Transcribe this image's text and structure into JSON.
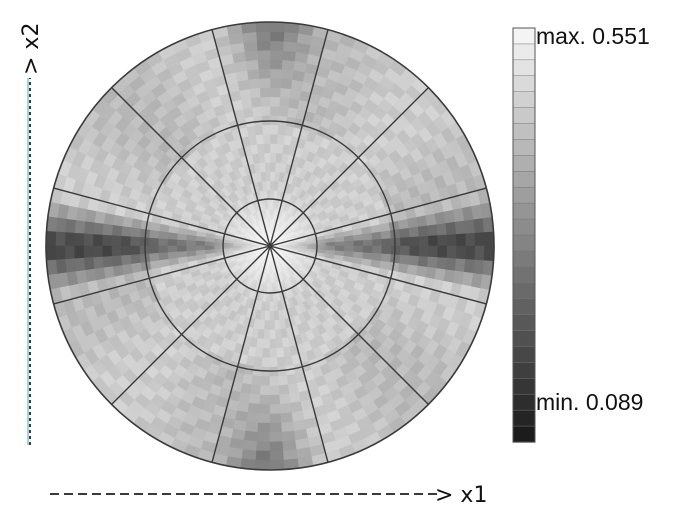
{
  "axes": {
    "x_label": "> x1",
    "y_label": "> x2"
  },
  "colorbar": {
    "max_label": "max. 0.551",
    "min_label": "min. 0.089",
    "max": 0.551,
    "min": 0.089,
    "colors": {
      "high": "#f4f4f4",
      "low": "#1c1c1c"
    }
  },
  "plot": {
    "colors": {
      "line": "#3a3a3a",
      "x2_axis_accent": "#59b8d8"
    }
  }
}
